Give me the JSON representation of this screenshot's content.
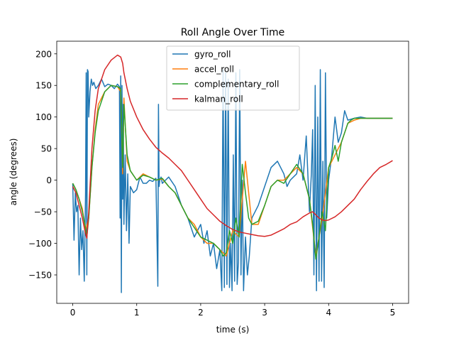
{
  "chart_data": {
    "type": "line",
    "title": "Roll Angle Over Time",
    "xlabel": "time (s)",
    "ylabel": "angle (degrees)",
    "xlim": [
      -0.25,
      5.25
    ],
    "ylim": [
      -195,
      220
    ],
    "xticks": [
      0,
      1,
      2,
      3,
      4,
      5
    ],
    "yticks": [
      -150,
      -100,
      -50,
      0,
      50,
      100,
      150,
      200
    ],
    "xtick_labels": [
      "0",
      "1",
      "2",
      "3",
      "4",
      "5"
    ],
    "ytick_labels": [
      "−150",
      "−100",
      "−50",
      "0",
      "50",
      "100",
      "150",
      "200"
    ],
    "grid": false,
    "legend": "top-center",
    "series": [
      {
        "name": "gyro_roll",
        "color": "#1f77b4",
        "x": [
          0.0,
          0.02,
          0.04,
          0.06,
          0.08,
          0.1,
          0.12,
          0.14,
          0.16,
          0.18,
          0.2,
          0.21,
          0.22,
          0.23,
          0.24,
          0.25,
          0.27,
          0.29,
          0.31,
          0.33,
          0.36,
          0.4,
          0.45,
          0.5,
          0.55,
          0.6,
          0.65,
          0.7,
          0.73,
          0.74,
          0.75,
          0.76,
          0.77,
          0.78,
          0.79,
          0.8,
          0.82,
          0.84,
          0.86,
          0.88,
          0.9,
          0.95,
          1.0,
          1.05,
          1.1,
          1.15,
          1.2,
          1.25,
          1.3,
          1.33,
          1.34,
          1.35,
          1.36,
          1.38,
          1.4,
          1.45,
          1.5,
          1.6,
          1.7,
          1.8,
          1.9,
          2.0,
          2.05,
          2.1,
          2.15,
          2.2,
          2.25,
          2.3,
          2.33,
          2.35,
          2.37,
          2.39,
          2.41,
          2.43,
          2.45,
          2.47,
          2.49,
          2.51,
          2.53,
          2.55,
          2.57,
          2.59,
          2.61,
          2.63,
          2.65,
          2.67,
          2.7,
          2.73,
          2.76,
          2.8,
          2.9,
          3.0,
          3.1,
          3.2,
          3.3,
          3.35,
          3.4,
          3.5,
          3.55,
          3.6,
          3.65,
          3.7,
          3.73,
          3.75,
          3.77,
          3.79,
          3.81,
          3.83,
          3.85,
          3.87,
          3.89,
          3.91,
          3.93,
          3.95,
          3.97,
          4.0,
          4.05,
          4.1,
          4.15,
          4.2,
          4.25,
          4.3,
          4.4,
          4.5,
          4.6,
          4.65,
          4.7,
          4.8,
          4.9,
          5.0
        ],
        "y": [
          -5,
          -95,
          -20,
          -50,
          -40,
          -150,
          -60,
          -110,
          -80,
          -160,
          -20,
          170,
          -150,
          175,
          172,
          100,
          140,
          160,
          150,
          155,
          145,
          150,
          160,
          148,
          152,
          150,
          145,
          152,
          148,
          -60,
          165,
          -178,
          150,
          -30,
          120,
          -70,
          40,
          -80,
          10,
          -100,
          -10,
          -20,
          -15,
          5,
          -5,
          -5,
          0,
          -2,
          3,
          -168,
          120,
          -10,
          0,
          5,
          -5,
          0,
          5,
          -10,
          -40,
          -60,
          -90,
          -70,
          -100,
          -80,
          -120,
          -100,
          -140,
          -110,
          -175,
          175,
          -170,
          170,
          -165,
          160,
          -170,
          -100,
          -175,
          40,
          -160,
          170,
          -165,
          -130,
          175,
          -150,
          0,
          -175,
          -90,
          -150,
          -120,
          -60,
          -40,
          -10,
          20,
          30,
          10,
          -10,
          0,
          10,
          40,
          0,
          70,
          -50,
          10,
          80,
          -150,
          150,
          -175,
          100,
          -160,
          175,
          -160,
          30,
          -170,
          170,
          -60,
          0,
          40,
          100,
          60,
          75,
          110,
          95,
          98,
          100,
          98,
          98,
          98,
          98,
          98,
          98
        ]
      },
      {
        "name": "accel_roll",
        "color": "#ff7f0e",
        "x": [
          0.0,
          0.05,
          0.1,
          0.15,
          0.2,
          0.25,
          0.3,
          0.35,
          0.4,
          0.5,
          0.6,
          0.7,
          0.75,
          0.78,
          0.8,
          0.85,
          0.9,
          1.0,
          1.1,
          1.2,
          1.3,
          1.4,
          1.5,
          1.6,
          1.7,
          1.8,
          1.9,
          2.0,
          2.1,
          2.2,
          2.3,
          2.4,
          2.5,
          2.6,
          2.7,
          2.8,
          2.9,
          3.0,
          3.1,
          3.2,
          3.3,
          3.4,
          3.5,
          3.6,
          3.7,
          3.8,
          3.9,
          4.0,
          4.1,
          4.2,
          4.3,
          4.4,
          4.5,
          4.6,
          4.7,
          4.8,
          4.9,
          5.0
        ],
        "y": [
          -5,
          -15,
          -30,
          -45,
          -80,
          -60,
          20,
          80,
          120,
          140,
          150,
          148,
          140,
          10,
          130,
          30,
          15,
          0,
          10,
          5,
          0,
          2,
          -10,
          -20,
          -40,
          -60,
          -70,
          -90,
          -100,
          -100,
          -110,
          -120,
          -80,
          -90,
          30,
          -70,
          -70,
          -40,
          -10,
          0,
          0,
          10,
          20,
          10,
          -30,
          -120,
          -60,
          20,
          40,
          60,
          90,
          95,
          98,
          98,
          98,
          98,
          98,
          98
        ]
      },
      {
        "name": "complementary_roll",
        "color": "#2ca02c",
        "x": [
          0.0,
          0.05,
          0.1,
          0.15,
          0.2,
          0.22,
          0.25,
          0.3,
          0.35,
          0.4,
          0.5,
          0.6,
          0.7,
          0.75,
          0.78,
          0.8,
          0.85,
          0.9,
          1.0,
          1.1,
          1.2,
          1.3,
          1.4,
          1.5,
          1.6,
          1.7,
          1.8,
          1.9,
          2.0,
          2.1,
          2.2,
          2.3,
          2.35,
          2.4,
          2.45,
          2.5,
          2.55,
          2.6,
          2.65,
          2.7,
          2.75,
          2.8,
          2.9,
          3.0,
          3.1,
          3.2,
          3.3,
          3.4,
          3.5,
          3.6,
          3.7,
          3.75,
          3.8,
          3.85,
          3.9,
          3.95,
          4.0,
          4.05,
          4.1,
          4.15,
          4.2,
          4.25,
          4.3,
          4.35,
          4.4,
          4.5,
          4.6,
          4.7,
          4.8,
          4.9,
          5.0
        ],
        "y": [
          -5,
          -15,
          -30,
          -50,
          -75,
          -90,
          -60,
          20,
          75,
          110,
          140,
          150,
          148,
          145,
          20,
          120,
          40,
          15,
          0,
          8,
          5,
          0,
          3,
          -10,
          -20,
          -40,
          -60,
          -75,
          -90,
          -95,
          -100,
          -110,
          -120,
          -115,
          -80,
          -100,
          -60,
          -90,
          25,
          -20,
          -60,
          -70,
          -65,
          -40,
          -10,
          0,
          -5,
          10,
          25,
          10,
          -30,
          -70,
          -125,
          -90,
          -50,
          -80,
          20,
          35,
          55,
          30,
          60,
          75,
          90,
          95,
          98,
          98,
          98,
          98,
          98,
          98,
          98
        ]
      },
      {
        "name": "kalman_roll",
        "color": "#d62728",
        "x": [
          0.0,
          0.05,
          0.1,
          0.15,
          0.2,
          0.22,
          0.25,
          0.3,
          0.35,
          0.4,
          0.5,
          0.6,
          0.7,
          0.75,
          0.78,
          0.8,
          0.85,
          0.9,
          1.0,
          1.1,
          1.2,
          1.3,
          1.4,
          1.5,
          1.6,
          1.7,
          1.8,
          1.9,
          2.0,
          2.1,
          2.2,
          2.3,
          2.4,
          2.5,
          2.6,
          2.7,
          2.8,
          2.9,
          3.0,
          3.1,
          3.2,
          3.3,
          3.4,
          3.5,
          3.6,
          3.7,
          3.75,
          3.8,
          3.85,
          3.9,
          3.95,
          4.0,
          4.1,
          4.2,
          4.3,
          4.4,
          4.5,
          4.6,
          4.7,
          4.8,
          4.9,
          5.0
        ],
        "y": [
          -10,
          -20,
          -40,
          -60,
          -85,
          -92,
          -50,
          50,
          110,
          145,
          175,
          190,
          198,
          195,
          185,
          170,
          145,
          125,
          100,
          80,
          65,
          52,
          43,
          35,
          25,
          15,
          0,
          -15,
          -30,
          -45,
          -55,
          -65,
          -72,
          -78,
          -82,
          -84,
          -86,
          -88,
          -89,
          -87,
          -82,
          -77,
          -70,
          -66,
          -58,
          -52,
          -50,
          -55,
          -60,
          -63,
          -64,
          -63,
          -58,
          -50,
          -40,
          -30,
          -15,
          -2,
          10,
          20,
          25,
          31
        ]
      }
    ]
  }
}
